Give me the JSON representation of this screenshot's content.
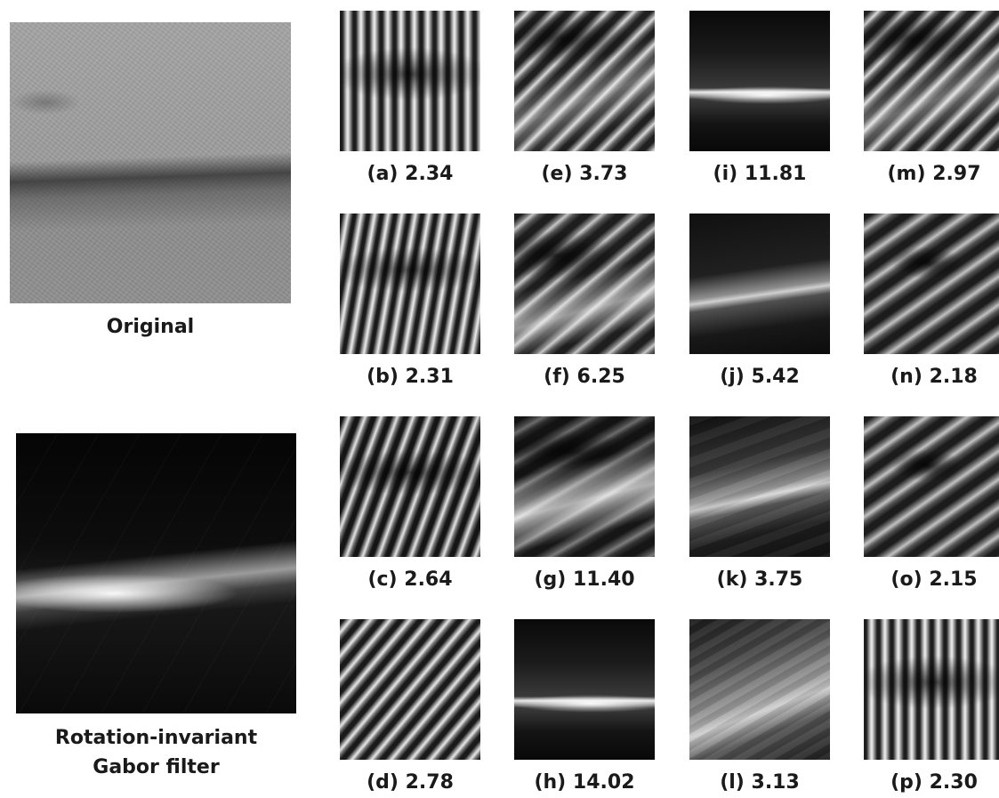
{
  "left": {
    "original_caption": "Original",
    "gabor_caption_line1": "Rotation-invariant",
    "gabor_caption_line2": "Gabor filter"
  },
  "tiles": [
    {
      "letter": "(a)",
      "score": "2.34"
    },
    {
      "letter": "(b)",
      "score": "2.31"
    },
    {
      "letter": "(c)",
      "score": "2.64"
    },
    {
      "letter": "(d)",
      "score": "2.78"
    },
    {
      "letter": "(e)",
      "score": "3.73"
    },
    {
      "letter": "(f)",
      "score": "6.25"
    },
    {
      "letter": "(g)",
      "score": "11.40"
    },
    {
      "letter": "(h)",
      "score": "14.02"
    },
    {
      "letter": "(i)",
      "score": "11.81"
    },
    {
      "letter": "(j)",
      "score": "5.42"
    },
    {
      "letter": "(k)",
      "score": "3.75"
    },
    {
      "letter": "(l)",
      "score": "3.13"
    },
    {
      "letter": "(m)",
      "score": "2.97"
    },
    {
      "letter": "(n)",
      "score": "2.18"
    },
    {
      "letter": "(o)",
      "score": "2.15"
    },
    {
      "letter": "(p)",
      "score": "2.30"
    }
  ]
}
